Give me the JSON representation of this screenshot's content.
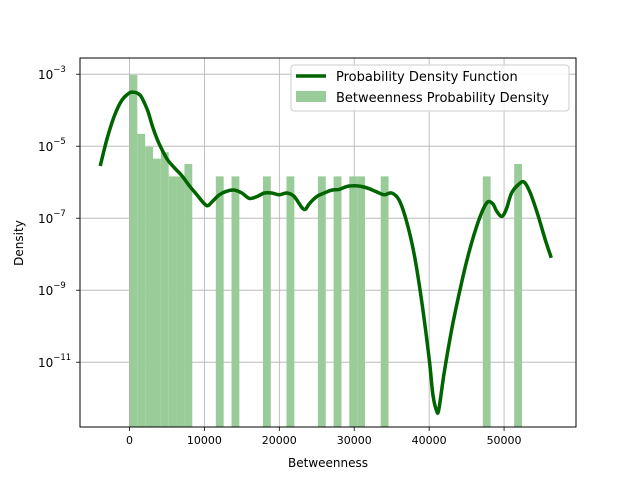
{
  "chart_data": {
    "type": "bar+line",
    "xlabel": "Betweenness",
    "ylabel": "Density",
    "xlim": [
      -6600,
      59600
    ],
    "ylim_log10": [
      -12.8,
      -2.55
    ],
    "grid": true,
    "legend_position": "upper right",
    "x_ticks": [
      0,
      10000,
      20000,
      30000,
      40000,
      50000
    ],
    "y_ticks": [
      {
        "base": "10",
        "exp": "−3",
        "log": -3
      },
      {
        "base": "10",
        "exp": "−5",
        "log": -5
      },
      {
        "base": "10",
        "exp": "−7",
        "log": -7
      },
      {
        "base": "10",
        "exp": "−9",
        "log": -9
      },
      {
        "base": "10",
        "exp": "−11",
        "log": -11
      }
    ],
    "legend": [
      {
        "label": "Probability Density Function",
        "kind": "line",
        "color": "#006400"
      },
      {
        "label": "Betweenness Probability Density",
        "kind": "bar",
        "color": "#99cc99"
      }
    ],
    "histogram": {
      "name": "Betweenness Probability Density",
      "color": "#99cc99",
      "bins": [
        {
          "x0": 0,
          "x1": 1048,
          "density": 0.00095
        },
        {
          "x0": 1048,
          "x1": 2096,
          "density": 2.2e-05
        },
        {
          "x0": 2096,
          "x1": 3144,
          "density": 9.5e-06
        },
        {
          "x0": 3144,
          "x1": 4192,
          "density": 4.5e-06
        },
        {
          "x0": 4192,
          "x1": 5240,
          "density": 6.8e-06
        },
        {
          "x0": 5240,
          "x1": 6288,
          "density": 1.45e-06
        },
        {
          "x0": 6288,
          "x1": 7336,
          "density": 1.45e-06
        },
        {
          "x0": 7336,
          "x1": 8384,
          "density": 3.2e-06
        },
        {
          "x0": 11528,
          "x1": 12576,
          "density": 1.45e-06
        },
        {
          "x0": 13624,
          "x1": 14672,
          "density": 1.45e-06
        },
        {
          "x0": 17816,
          "x1": 18864,
          "density": 1.45e-06
        },
        {
          "x0": 20960,
          "x1": 22008,
          "density": 1.45e-06
        },
        {
          "x0": 25152,
          "x1": 26200,
          "density": 1.45e-06
        },
        {
          "x0": 27248,
          "x1": 28296,
          "density": 1.45e-06
        },
        {
          "x0": 29344,
          "x1": 30392,
          "density": 1.45e-06
        },
        {
          "x0": 30392,
          "x1": 31440,
          "density": 1.45e-06
        },
        {
          "x0": 33536,
          "x1": 34584,
          "density": 1.45e-06
        },
        {
          "x0": 47160,
          "x1": 48208,
          "density": 1.45e-06
        },
        {
          "x0": 51352,
          "x1": 52400,
          "density": 3.2e-06
        }
      ]
    },
    "pdf_line": {
      "name": "Probability Density Function",
      "color": "#006400",
      "points": [
        [
          -3900,
          -5.55
        ],
        [
          -3000,
          -4.8
        ],
        [
          -2000,
          -4.15
        ],
        [
          -1000,
          -3.72
        ],
        [
          0,
          -3.52
        ],
        [
          500,
          -3.5
        ],
        [
          1000,
          -3.52
        ],
        [
          1500,
          -3.6
        ],
        [
          2000,
          -3.8
        ],
        [
          2500,
          -4.05
        ],
        [
          3000,
          -4.4
        ],
        [
          3500,
          -4.7
        ],
        [
          4000,
          -4.95
        ],
        [
          5000,
          -5.35
        ],
        [
          6000,
          -5.6
        ],
        [
          7000,
          -5.82
        ],
        [
          8000,
          -6.1
        ],
        [
          9000,
          -6.35
        ],
        [
          10000,
          -6.6
        ],
        [
          10500,
          -6.65
        ],
        [
          11000,
          -6.55
        ],
        [
          12000,
          -6.35
        ],
        [
          13000,
          -6.25
        ],
        [
          14000,
          -6.22
        ],
        [
          15000,
          -6.3
        ],
        [
          16000,
          -6.45
        ],
        [
          17000,
          -6.4
        ],
        [
          18000,
          -6.3
        ],
        [
          19000,
          -6.3
        ],
        [
          20000,
          -6.35
        ],
        [
          21000,
          -6.3
        ],
        [
          22000,
          -6.4
        ],
        [
          23000,
          -6.7
        ],
        [
          23500,
          -6.75
        ],
        [
          24000,
          -6.6
        ],
        [
          25000,
          -6.4
        ],
        [
          26000,
          -6.3
        ],
        [
          27000,
          -6.22
        ],
        [
          28000,
          -6.2
        ],
        [
          29000,
          -6.12
        ],
        [
          30000,
          -6.1
        ],
        [
          31000,
          -6.12
        ],
        [
          32000,
          -6.18
        ],
        [
          33000,
          -6.27
        ],
        [
          34000,
          -6.35
        ],
        [
          35000,
          -6.3
        ],
        [
          36000,
          -6.5
        ],
        [
          37000,
          -7.1
        ],
        [
          38000,
          -8.0
        ],
        [
          39000,
          -9.3
        ],
        [
          40000,
          -10.9
        ],
        [
          40500,
          -11.9
        ],
        [
          41000,
          -12.35
        ],
        [
          41300,
          -12.3
        ],
        [
          42000,
          -11.3
        ],
        [
          43000,
          -10.1
        ],
        [
          44000,
          -9.1
        ],
        [
          45000,
          -8.2
        ],
        [
          46000,
          -7.45
        ],
        [
          47000,
          -6.85
        ],
        [
          47800,
          -6.55
        ],
        [
          48500,
          -6.6
        ],
        [
          49000,
          -6.8
        ],
        [
          49700,
          -6.95
        ],
        [
          50300,
          -6.75
        ],
        [
          51000,
          -6.3
        ],
        [
          52000,
          -6.05
        ],
        [
          52700,
          -6.0
        ],
        [
          53500,
          -6.3
        ],
        [
          54500,
          -6.9
        ],
        [
          55500,
          -7.6
        ],
        [
          56300,
          -8.1
        ]
      ]
    }
  }
}
